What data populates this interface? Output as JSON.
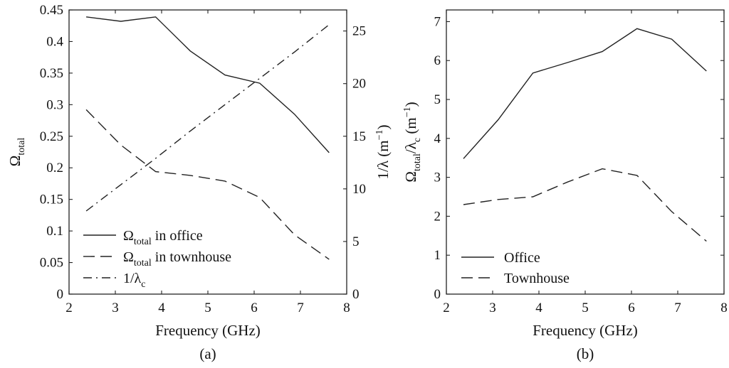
{
  "chart_data": [
    {
      "type": "line",
      "panel_label": "(a)",
      "xlabel": "Frequency (GHz)",
      "ylabel": "Ω",
      "ylabel_sub": "total",
      "y2label_base": "1/λ (m",
      "y2label_sup": "−1",
      "y2label_end": ")",
      "xlim": [
        2,
        8
      ],
      "ylim": [
        0,
        0.45
      ],
      "y2lim": [
        0,
        27
      ],
      "xticks": [
        "2",
        "3",
        "4",
        "5",
        "6",
        "7",
        "8"
      ],
      "yticks": [
        "0",
        "0.05",
        "0.1",
        "0.15",
        "0.2",
        "0.25",
        "0.3",
        "0.35",
        "0.4",
        "0.45"
      ],
      "y2ticks": [
        "0",
        "5",
        "10",
        "15",
        "20",
        "25"
      ],
      "x": [
        2.37,
        3.12,
        3.87,
        4.62,
        5.37,
        6.12,
        6.87,
        7.62
      ],
      "series": [
        {
          "name_main": "Ω",
          "name_sub": "total",
          "name_end": " in office",
          "style": "solid",
          "axis": "left",
          "values": [
            0.439,
            0.432,
            0.439,
            0.385,
            0.347,
            0.334,
            0.285,
            0.224
          ]
        },
        {
          "name_main": "Ω",
          "name_sub": "total",
          "name_end": " in townhouse",
          "style": "dashed",
          "axis": "left",
          "values": [
            0.292,
            0.236,
            0.194,
            0.188,
            0.179,
            0.153,
            0.094,
            0.055
          ]
        },
        {
          "name_main": "1/λ",
          "name_sub": "c",
          "name_end": "",
          "style": "dashdot",
          "axis": "right",
          "values": [
            7.9,
            10.4,
            12.9,
            15.5,
            18.0,
            20.5,
            23.0,
            25.6
          ]
        }
      ],
      "legend_position": "bottom-left"
    },
    {
      "type": "line",
      "panel_label": "(b)",
      "xlabel": "Frequency (GHz)",
      "ylabel_main": "Ω",
      "ylabel_sub1": "total",
      "ylabel_mid": "/λ",
      "ylabel_sub2": "c",
      "ylabel_end": " (m",
      "ylabel_sup": "−1",
      "ylabel_close": ")",
      "xlim": [
        2,
        8
      ],
      "ylim": [
        0,
        7.3
      ],
      "xticks": [
        "2",
        "3",
        "4",
        "5",
        "6",
        "7",
        "8"
      ],
      "yticks": [
        "0",
        "1",
        "2",
        "3",
        "4",
        "5",
        "6",
        "7"
      ],
      "x": [
        2.37,
        3.12,
        3.87,
        4.62,
        5.37,
        6.12,
        6.87,
        7.62
      ],
      "series": [
        {
          "name": "Office",
          "style": "solid",
          "values": [
            3.48,
            4.48,
            5.68,
            5.95,
            6.23,
            6.82,
            6.55,
            5.73
          ]
        },
        {
          "name": "Townhouse",
          "style": "dashed",
          "values": [
            2.3,
            2.43,
            2.5,
            2.88,
            3.22,
            3.05,
            2.12,
            1.36
          ]
        }
      ],
      "legend_position": "bottom-left"
    }
  ]
}
